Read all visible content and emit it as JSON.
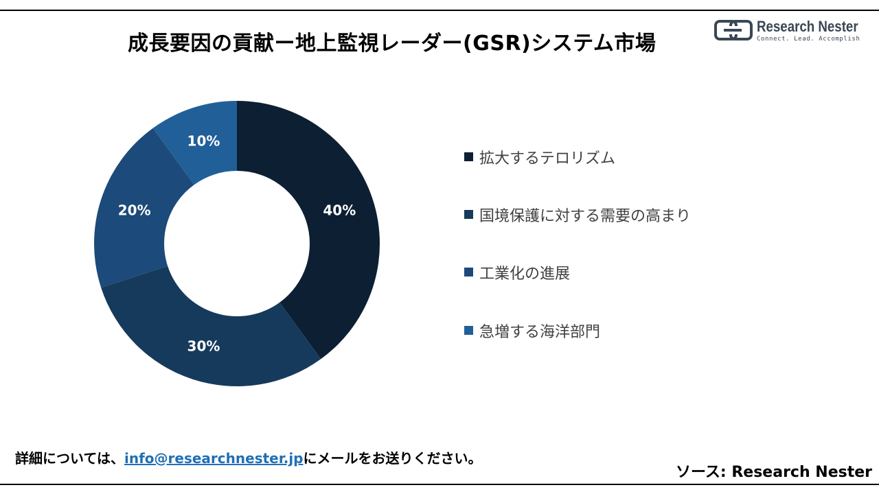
{
  "header": {
    "title": "成長要因の貢献ー地上監視レーダー(GSR)システム市場"
  },
  "logo": {
    "name": "Research Nester",
    "tagline": "Connect. Lead. Accomplish",
    "icon": "research-nester-logo-icon",
    "color": "#3a4654"
  },
  "chart_data": {
    "type": "pie",
    "variant": "donut",
    "categories": [
      "拡大するテロリズム",
      "国境保護に対する需要の高まり",
      "工業化の進展",
      "急増する海洋部門"
    ],
    "values": [
      40,
      30,
      20,
      10
    ],
    "labels": [
      "40%",
      "30%",
      "20%",
      "10%"
    ],
    "colors": [
      "#0d1f33",
      "#163a5c",
      "#1c4a7a",
      "#215f98"
    ],
    "legend_placement": "right",
    "label_color": "#ffffff",
    "start_angle_deg": 0,
    "direction": "clockwise"
  },
  "footer": {
    "contact_prefix": "詳細については、",
    "contact_email": "info@researchnester.jp",
    "contact_suffix": "にメールをお送りください。",
    "source": "ソース: Research Nester"
  }
}
